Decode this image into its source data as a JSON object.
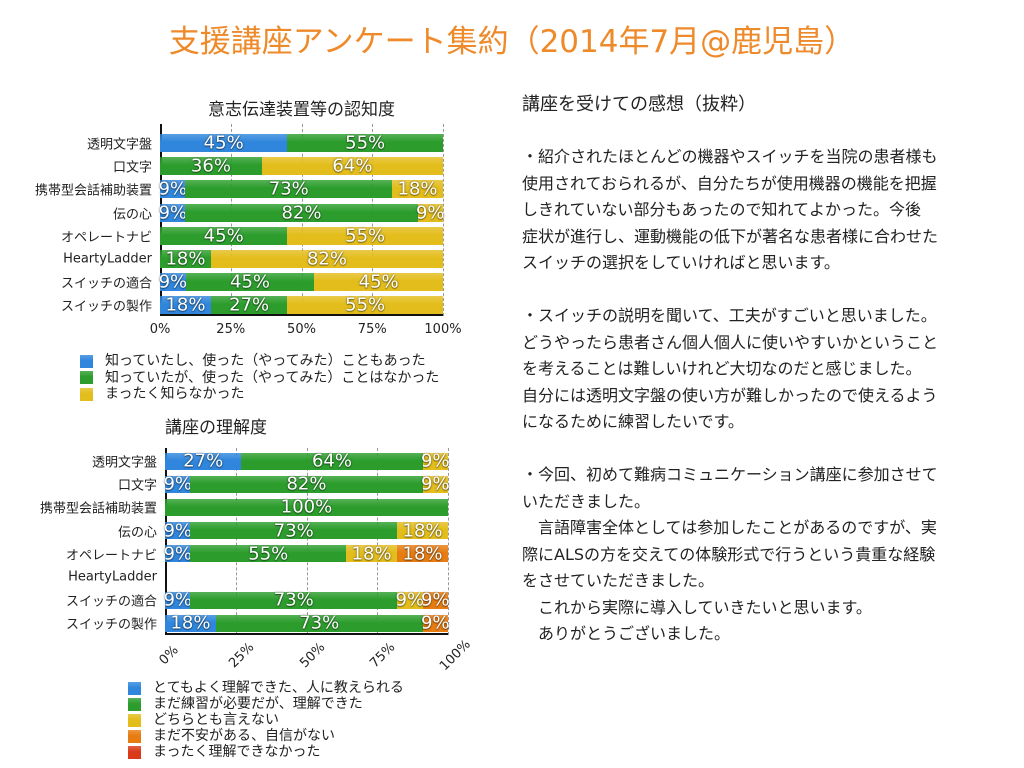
{
  "title": "支援講座アンケート集約（2014年7月@鹿児島）",
  "chart_data": [
    {
      "type": "bar",
      "orientation": "horizontal",
      "stacked": true,
      "title": "意志伝達装置等の認知度",
      "categories": [
        "透明文字盤",
        "口文字",
        "携帯型会話補助装置",
        "伝の心",
        "オペレートナビ",
        "HeartyLadder",
        "スイッチの適合",
        "スイッチの製作"
      ],
      "xticks": [
        "0%",
        "25%",
        "50%",
        "75%",
        "100%"
      ],
      "xlim": [
        0,
        100
      ],
      "grid": "vertical dashed",
      "legend_position": "bottom",
      "series": [
        {
          "name": "知っていたし、使った（やってみた）こともあった",
          "color": "#2f86dc",
          "values": [
            45,
            null,
            9,
            9,
            null,
            null,
            9,
            18
          ]
        },
        {
          "name": "知っていたが、使った（やってみた）ことはなかった",
          "color": "#2c9d2c",
          "values": [
            55,
            36,
            73,
            82,
            45,
            18,
            45,
            27
          ]
        },
        {
          "name": "まったく知らなかった",
          "color": "#e3bd1c",
          "values": [
            null,
            64,
            18,
            9,
            55,
            82,
            45,
            55
          ]
        }
      ]
    },
    {
      "type": "bar",
      "orientation": "horizontal",
      "stacked": true,
      "title": "講座の理解度",
      "categories": [
        "透明文字盤",
        "口文字",
        "携帯型会話補助装置",
        "伝の心",
        "オペレートナビ",
        "HeartyLadder",
        "スイッチの適合",
        "スイッチの製作"
      ],
      "xticks": [
        "0%",
        "25%",
        "50%",
        "75%",
        "100%"
      ],
      "xlim": [
        0,
        100
      ],
      "grid": "vertical dashed",
      "legend_position": "bottom",
      "series": [
        {
          "name": "とてもよく理解できた、人に教えられる",
          "color": "#2f86dc",
          "values": [
            27,
            9,
            null,
            9,
            9,
            null,
            9,
            18
          ]
        },
        {
          "name": "まだ練習が必要だが、理解できた",
          "color": "#2c9d2c",
          "values": [
            64,
            82,
            100,
            73,
            55,
            null,
            73,
            73
          ]
        },
        {
          "name": "どちらとも言えない",
          "color": "#e3bd1c",
          "values": [
            9,
            9,
            null,
            18,
            18,
            null,
            9,
            null
          ]
        },
        {
          "name": "まだ不安がある、自信がない",
          "color": "#e67c12",
          "values": [
            null,
            null,
            null,
            null,
            18,
            null,
            9,
            9
          ]
        },
        {
          "name": "まったく理解できなかった",
          "color": "#d93a1a",
          "values": [
            null,
            null,
            null,
            null,
            null,
            null,
            null,
            null
          ]
        }
      ]
    }
  ],
  "comments": {
    "title": "講座を受けての感想（抜粋）",
    "paragraphs": [
      [
        "・紹介されたほとんどの機器やスイッチを当院の患者様も",
        "使用されておられるが、自分たちが使用機器の機能を把握",
        "しきれていない部分もあったので知れてよかった。今後",
        "症状が進行し、運動機能の低下が著名な患者様に合わせた",
        "スイッチの選択をしていければと思います。"
      ],
      [
        "・スイッチの説明を聞いて、工夫がすごいと思いました。",
        "どうやったら患者さん個人個人に使いやすいかということ",
        "を考えることは難しいけれど大切なのだと感じました。",
        "自分には透明文字盤の使い方が難しかったので使えるよう",
        "になるために練習したいです。"
      ],
      [
        "・今回、初めて難病コミュニケーション講座に参加させて",
        "いただきました。",
        "　言語障害全体としては参加したことがあるのですが、実",
        "際にALSの方を交えての体験形式で行うという貴重な経験",
        "をさせていただきました。",
        "　これから実際に導入していきたいと思います。",
        "　ありがとうございました。"
      ]
    ]
  }
}
